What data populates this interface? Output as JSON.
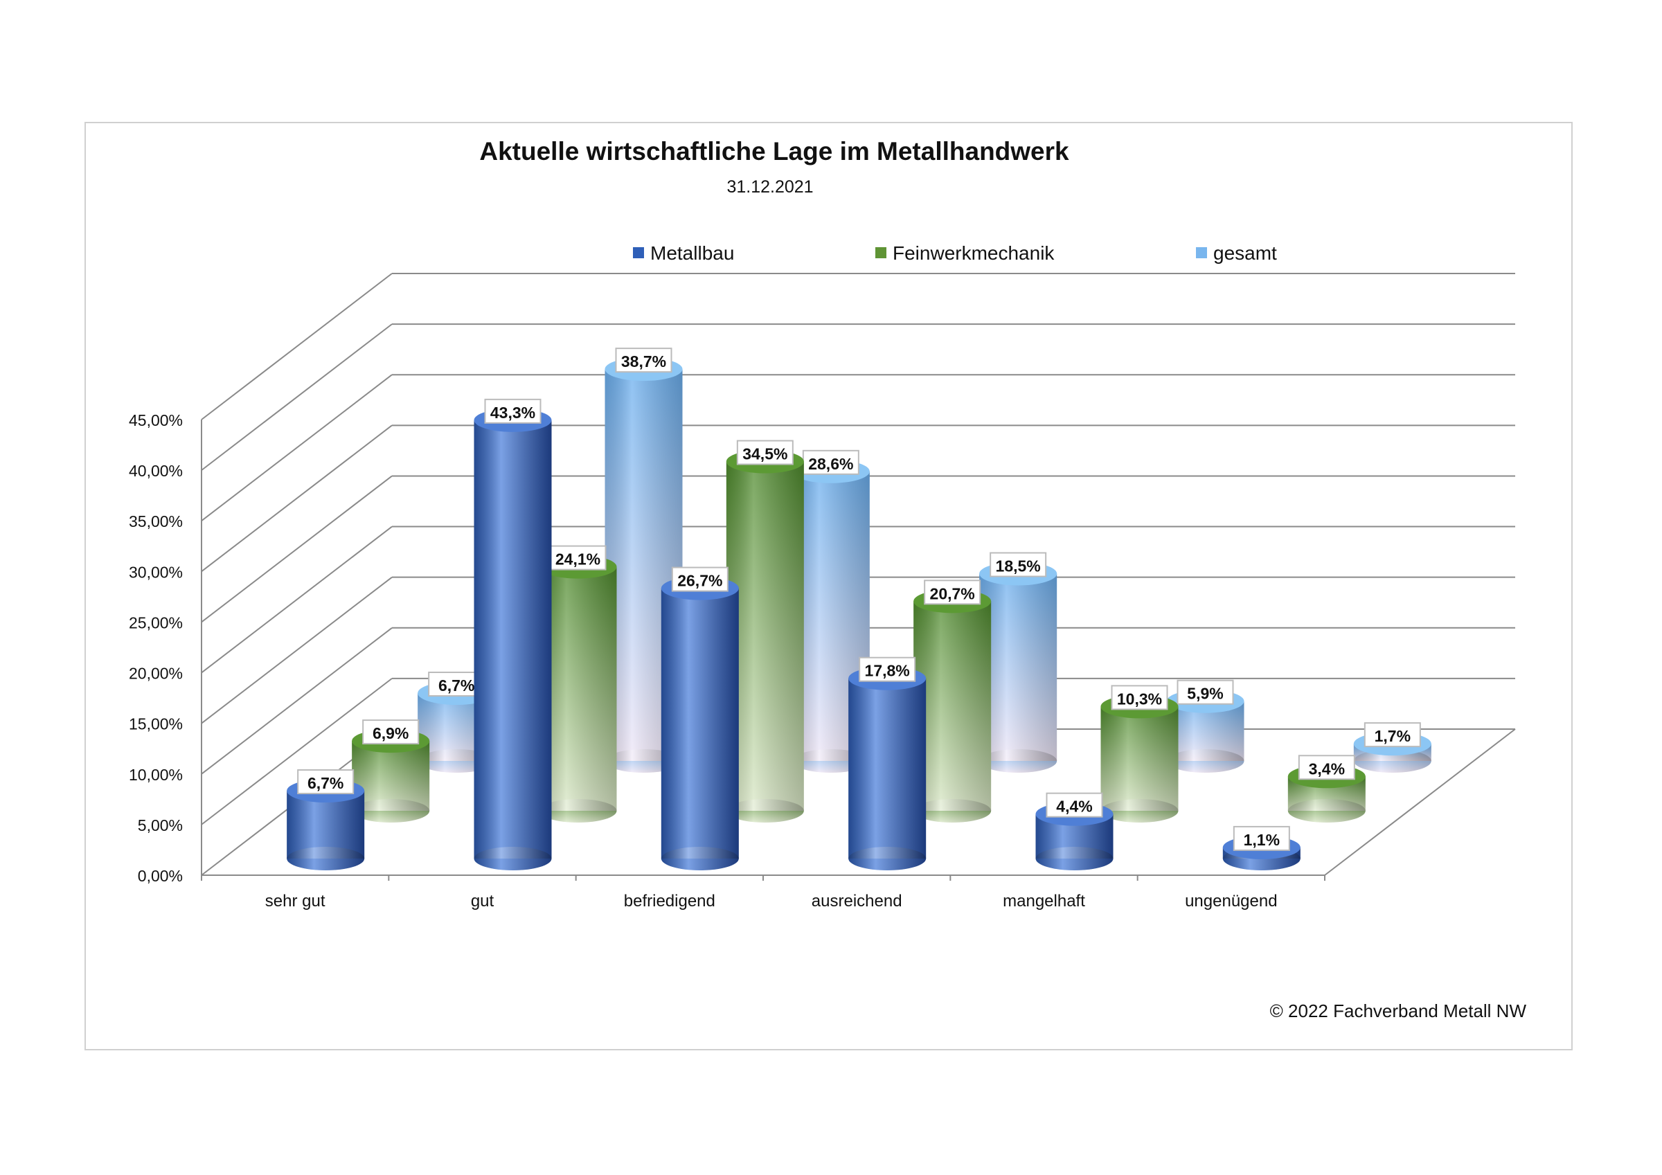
{
  "chart_data": {
    "type": "bar",
    "subtype": "3d-cylinder",
    "title": "Aktuelle wirtschaftliche Lage im Metallhandwerk",
    "subtitle": "31.12.2021",
    "categories": [
      "sehr gut",
      "gut",
      "befriedigend",
      "ausreichend",
      "mangelhaft",
      "ungenügend"
    ],
    "series": [
      {
        "name": "Metallbau",
        "values": [
          6.7,
          43.3,
          26.7,
          17.8,
          4.4,
          1.1
        ],
        "labels": [
          "6,7%",
          "43,3%",
          "26,7%",
          "17,8%",
          "4,4%",
          "1,1%"
        ],
        "color": "#3a6cc8"
      },
      {
        "name": "Feinwerkmechanik",
        "values": [
          6.9,
          24.1,
          34.5,
          20.7,
          10.3,
          3.4
        ],
        "labels": [
          "6,9%",
          "24,1%",
          "34,5%",
          "20,7%",
          "10,3%",
          "3,4%"
        ],
        "color": "#5f9435"
      },
      {
        "name": "gesamt",
        "values": [
          6.7,
          38.7,
          28.6,
          18.5,
          5.9,
          1.7
        ],
        "labels": [
          "6,7%",
          "38,7%",
          "28,6%",
          "18,5%",
          "5,9%",
          "1,7%"
        ],
        "color": "#79b6ee"
      }
    ],
    "ylim": [
      0,
      45
    ],
    "yticks": [
      "0,00%",
      "5,00%",
      "10,00%",
      "15,00%",
      "20,00%",
      "25,00%",
      "30,00%",
      "35,00%",
      "40,00%",
      "45,00%"
    ],
    "xlabel": "",
    "ylabel": "",
    "legend": "top",
    "grid": true
  },
  "footer": {
    "copyright": "© 2022 Fachverband Metall NW"
  }
}
